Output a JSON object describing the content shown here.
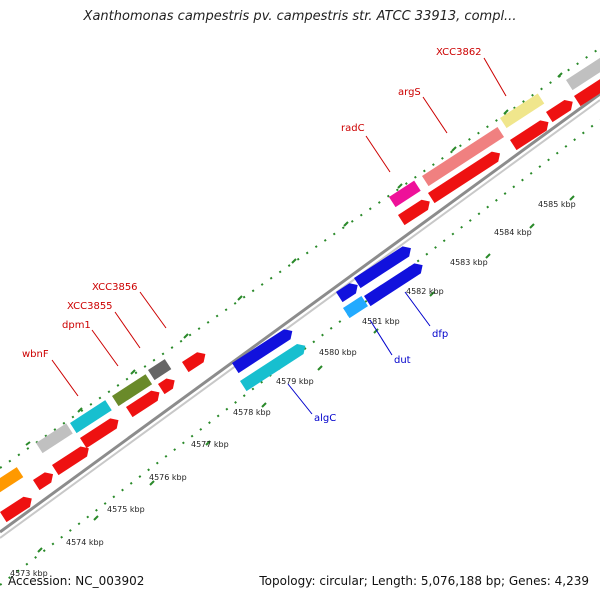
{
  "title": "Xanthomonas campestris pv. campestris str. ATCC 33913, compl...",
  "footer": {
    "accession": "Accession: NC_003902",
    "summary": "Topology: circular; Length: 5,076,188 bp; Genes: 4,239"
  },
  "colors": {
    "tick": "#2a8a2a",
    "backbone": "#8c8c8c",
    "label_red": "#cc0000",
    "label_blue": "#0000cc"
  },
  "ticks": [
    {
      "label": "4573 kbp"
    },
    {
      "label": "4574 kbp"
    },
    {
      "label": "4575 kbp"
    },
    {
      "label": "4576 kbp"
    },
    {
      "label": "4577 kbp"
    },
    {
      "label": "4578 kbp"
    },
    {
      "label": "4579 kbp"
    },
    {
      "label": "4580 kbp"
    },
    {
      "label": "4581 kbp"
    },
    {
      "label": "4582 kbp"
    },
    {
      "label": "4583 kbp"
    },
    {
      "label": "4584 kbp"
    },
    {
      "label": "4585 kbp"
    }
  ],
  "labels": [
    {
      "text": "XCC3862",
      "color": "red"
    },
    {
      "text": "argS",
      "color": "red"
    },
    {
      "text": "radC",
      "color": "red"
    },
    {
      "text": "XCC3856",
      "color": "red"
    },
    {
      "text": "XCC3855",
      "color": "red"
    },
    {
      "text": "dpm1",
      "color": "red"
    },
    {
      "text": "wbnF",
      "color": "red"
    },
    {
      "text": "dfp",
      "color": "blue"
    },
    {
      "text": "dut",
      "color": "blue"
    },
    {
      "text": "algC",
      "color": "blue"
    }
  ]
}
